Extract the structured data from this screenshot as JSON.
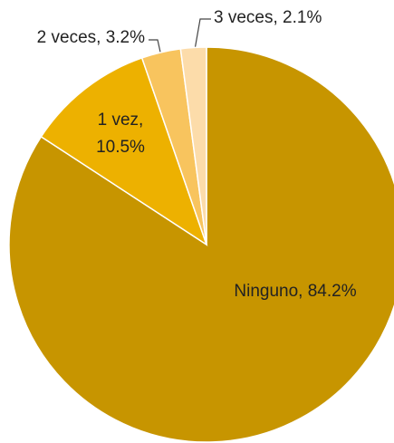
{
  "chart_data": {
    "type": "pie",
    "categories": [
      "Ninguno",
      "1 vez",
      "2 veces",
      "3 veces"
    ],
    "values": [
      84.2,
      10.5,
      3.2,
      2.1
    ],
    "value_labels": [
      "Ninguno, 84.2%",
      "1 vez, 10.5%",
      "2 veces, 3.2%",
      "3 veces, 2.1%"
    ],
    "colors": [
      "#c79500",
      "#edb100",
      "#f8c45e",
      "#fcdcaa"
    ]
  }
}
